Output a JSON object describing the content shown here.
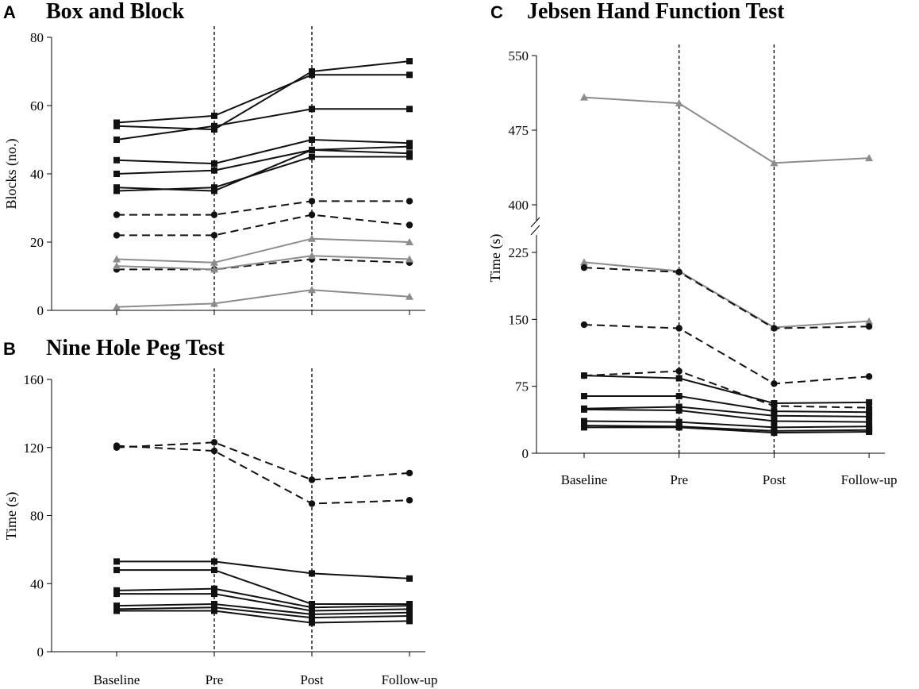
{
  "chart_data": [
    {
      "panel": "A",
      "type": "line",
      "title": "Box and Block",
      "xlabel": "",
      "ylabel": "Blocks (no.)",
      "categories": [
        "Baseline",
        "Pre",
        "Post",
        "Follow-up"
      ],
      "ylim": [
        0,
        80
      ],
      "yticks": [
        0,
        20,
        40,
        60,
        80
      ],
      "phase_lines_after": [
        "Pre",
        "Post"
      ],
      "series": [
        {
          "style": "solid-square",
          "values": [
            55,
            57,
            69,
            69
          ]
        },
        {
          "style": "solid-square",
          "values": [
            54,
            53,
            70,
            73
          ]
        },
        {
          "style": "solid-square",
          "values": [
            50,
            54,
            59,
            59
          ]
        },
        {
          "style": "solid-square",
          "values": [
            44,
            43,
            50,
            49
          ]
        },
        {
          "style": "solid-square",
          "values": [
            40,
            41,
            47,
            48
          ]
        },
        {
          "style": "solid-square",
          "values": [
            36,
            35,
            47,
            46
          ]
        },
        {
          "style": "solid-square",
          "values": [
            35,
            36,
            45,
            45
          ]
        },
        {
          "style": "dashed-circle",
          "values": [
            28,
            28,
            32,
            32
          ]
        },
        {
          "style": "dashed-circle",
          "values": [
            22,
            22,
            28,
            25
          ]
        },
        {
          "style": "dashed-circle",
          "values": [
            12,
            12,
            15,
            14
          ]
        },
        {
          "style": "gray-triangle",
          "values": [
            15,
            14,
            21,
            20
          ]
        },
        {
          "style": "gray-triangle",
          "values": [
            13,
            12,
            16,
            15
          ]
        },
        {
          "style": "gray-triangle",
          "values": [
            1,
            2,
            6,
            4
          ]
        }
      ]
    },
    {
      "panel": "B",
      "type": "line",
      "title": "Nine Hole Peg Test",
      "xlabel": "",
      "ylabel": "Time (s)",
      "categories": [
        "Baseline",
        "Pre",
        "Post",
        "Follow-up"
      ],
      "ylim": [
        0,
        160
      ],
      "yticks": [
        0,
        40,
        80,
        120,
        160
      ],
      "phase_lines_after": [
        "Pre",
        "Post"
      ],
      "series": [
        {
          "style": "dashed-circle",
          "values": [
            121,
            118,
            87,
            89
          ]
        },
        {
          "style": "dashed-circle",
          "values": [
            120,
            123,
            101,
            105
          ]
        },
        {
          "style": "solid-square",
          "values": [
            53,
            53,
            46,
            43
          ]
        },
        {
          "style": "solid-square",
          "values": [
            48,
            48,
            28,
            28
          ]
        },
        {
          "style": "solid-square",
          "values": [
            36,
            37,
            26,
            27
          ]
        },
        {
          "style": "solid-square",
          "values": [
            34,
            34,
            24,
            25
          ]
        },
        {
          "style": "solid-square",
          "values": [
            27,
            28,
            22,
            23
          ]
        },
        {
          "style": "solid-square",
          "values": [
            25,
            26,
            20,
            21
          ]
        },
        {
          "style": "solid-square",
          "values": [
            24,
            24,
            17,
            18
          ]
        }
      ]
    },
    {
      "panel": "C",
      "type": "line",
      "title": "Jebsen Hand Function Test",
      "xlabel": "",
      "ylabel": "Time (s)",
      "categories": [
        "Baseline",
        "Pre",
        "Post",
        "Follow-up"
      ],
      "ylim": [
        0,
        550
      ],
      "axis_break": [
        225,
        400
      ],
      "yticks": [
        0,
        75,
        150,
        225,
        400,
        475,
        550
      ],
      "phase_lines_after": [
        "Pre",
        "Post"
      ],
      "series": [
        {
          "style": "gray-triangle",
          "values": [
            508,
            502,
            442,
            447
          ]
        },
        {
          "style": "gray-triangle",
          "values": [
            214,
            204,
            141,
            148
          ]
        },
        {
          "style": "dashed-circle",
          "values": [
            208,
            203,
            140,
            142
          ]
        },
        {
          "style": "dashed-circle",
          "values": [
            144,
            140,
            78,
            86
          ]
        },
        {
          "style": "dashed-circle",
          "values": [
            87,
            92,
            53,
            51
          ]
        },
        {
          "style": "solid-square",
          "values": [
            87,
            84,
            56,
            57
          ]
        },
        {
          "style": "solid-square",
          "values": [
            64,
            64,
            47,
            46
          ]
        },
        {
          "style": "solid-square",
          "values": [
            50,
            52,
            42,
            41
          ]
        },
        {
          "style": "solid-square",
          "values": [
            49,
            48,
            36,
            35
          ]
        },
        {
          "style": "solid-square",
          "values": [
            36,
            35,
            29,
            30
          ]
        },
        {
          "style": "solid-square",
          "values": [
            31,
            30,
            25,
            26
          ]
        },
        {
          "style": "solid-square",
          "values": [
            29,
            29,
            23,
            24
          ]
        }
      ]
    }
  ]
}
